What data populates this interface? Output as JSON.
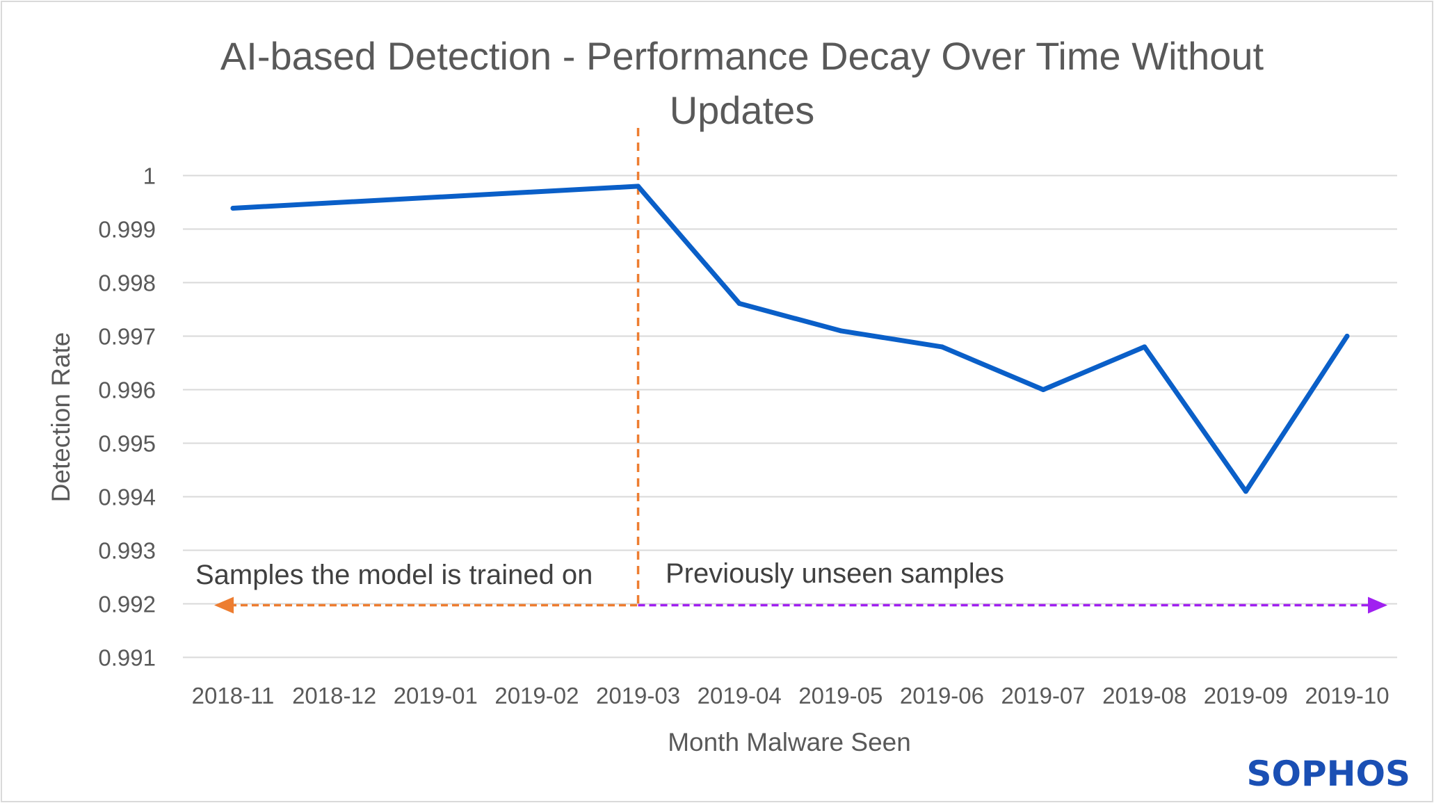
{
  "chart_data": {
    "type": "line",
    "title_lines": [
      "AI-based Detection - Performance Decay Over Time Without",
      "Updates"
    ],
    "xlabel": "Month Malware Seen",
    "ylabel": "Detection Rate",
    "categories": [
      "2018-11",
      "2018-12",
      "2019-01",
      "2019-02",
      "2019-03",
      "2019-04",
      "2019-05",
      "2019-06",
      "2019-07",
      "2019-08",
      "2019-09",
      "2019-10"
    ],
    "series": [
      {
        "name": "Detection Rate",
        "color": "#0a5fc8",
        "values": [
          0.99939,
          null,
          null,
          null,
          0.9998,
          0.99761,
          0.9971,
          0.9968,
          0.996,
          0.9968,
          0.9941,
          0.997
        ]
      }
    ],
    "ylim": [
      0.991,
      1
    ],
    "yticks": [
      1,
      0.999,
      0.998,
      0.997,
      0.996,
      0.995,
      0.994,
      0.993,
      0.992,
      0.991
    ],
    "ytick_labels": [
      "1",
      "0.999",
      "0.998",
      "0.997",
      "0.996",
      "0.995",
      "0.994",
      "0.993",
      "0.992",
      "0.991"
    ],
    "grid": true,
    "annotations": {
      "split_category": "2019-03",
      "split_color": "#ed7d31",
      "left_label": "Samples the model is trained on",
      "left_color": "#ed7d31",
      "right_label": "Previously unseen samples",
      "right_color": "#a020f0",
      "arrow_value": 0.992
    }
  },
  "logo": {
    "text": "SOPHOS",
    "color": "#1a4fb4"
  }
}
